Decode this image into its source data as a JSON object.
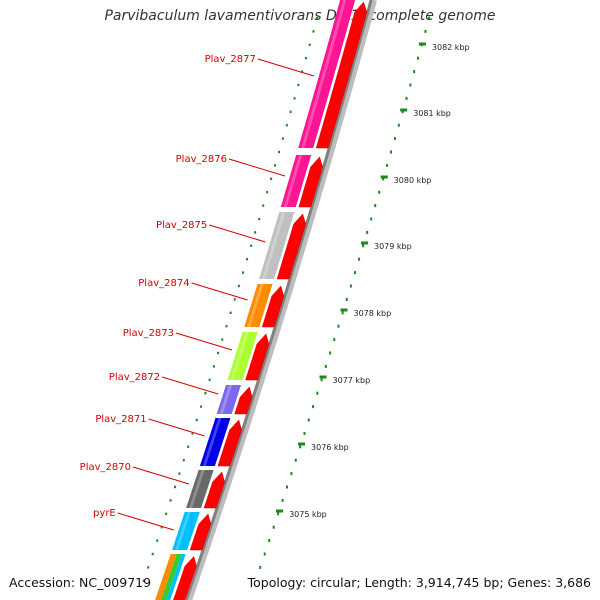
{
  "title": "Parvibaculum lavamentivorans DS-1, complete genome",
  "footer": {
    "accession": "Accession: NC_009719",
    "summary": "Topology: circular; Length: 3,914,745 bp; Genes: 3,686"
  },
  "colors": {
    "label_red": "#d40000",
    "arrow_red": "#ff0000",
    "backbone_gray": "#808080",
    "tick_green": "#1a8a1a"
  },
  "ticks": [
    {
      "label": "3082 kbp"
    },
    {
      "label": "3081 kbp"
    },
    {
      "label": "3080 kbp"
    },
    {
      "label": "3079 kbp"
    },
    {
      "label": "3078 kbp"
    },
    {
      "label": "3077 kbp"
    },
    {
      "label": "3076 kbp"
    },
    {
      "label": "3075 kbp"
    }
  ],
  "genes": [
    {
      "label": "Plav_2877",
      "color": "#ff1493"
    },
    {
      "label": "Plav_2876",
      "color": "#ff1493"
    },
    {
      "label": "Plav_2875",
      "color": "#c0c0c0"
    },
    {
      "label": "Plav_2874",
      "color": "#ff8c00"
    },
    {
      "label": "Plav_2873",
      "color": "#adff2f"
    },
    {
      "label": "Plav_2872",
      "color": "#7b68ee"
    },
    {
      "label": "Plav_2871",
      "color": "#0000e6"
    },
    {
      "label": "Plav_2870",
      "color": "#696969"
    },
    {
      "label": "pyrE",
      "color": "#00bfff"
    }
  ]
}
